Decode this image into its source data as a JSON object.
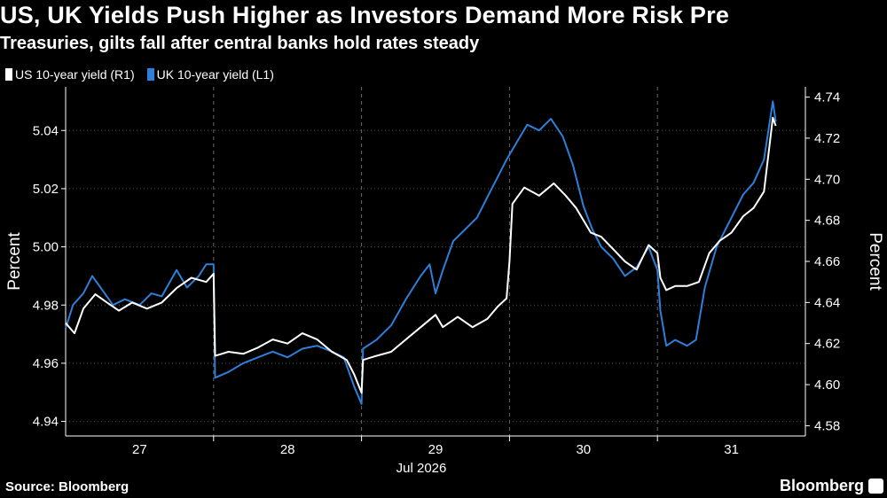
{
  "header": {
    "title": "US, UK Yields Push Higher as Investors Demand More Risk Pre",
    "subtitle": "Treasuries, gilts fall after central banks hold rates steady"
  },
  "footer": {
    "source": "Source: Bloomberg",
    "brand": "Bloomberg"
  },
  "colors": {
    "us": "#ffffff",
    "uk": "#2e7fd9",
    "background": "#000000",
    "grid": "#4d4d4d"
  },
  "chart_data": {
    "type": "line",
    "x_tick_labels": [
      "27",
      "28",
      "29",
      "30",
      "31"
    ],
    "x_sub_label": "Jul 2026",
    "x_range": [
      26.5,
      31.5
    ],
    "left_axis": {
      "label": "Percent",
      "range": [
        4.935,
        5.055
      ],
      "ticks": [
        "4.94",
        "4.96",
        "4.98",
        "5.00",
        "5.02",
        "5.04"
      ]
    },
    "right_axis": {
      "label": "Percent",
      "range": [
        4.575,
        4.745
      ],
      "ticks": [
        "4.58",
        "4.60",
        "4.62",
        "4.64",
        "4.66",
        "4.68",
        "4.70",
        "4.72",
        "4.74"
      ]
    },
    "grid": "horizontal dotted, vertical dashed at day boundaries",
    "legend": "top-left",
    "series": [
      {
        "name": "US 10-year yield (R1)",
        "axis": "right",
        "points": [
          [
            26.5,
            4.63
          ],
          [
            26.56,
            4.625
          ],
          [
            26.62,
            4.637
          ],
          [
            26.7,
            4.644
          ],
          [
            26.78,
            4.64
          ],
          [
            26.86,
            4.636
          ],
          [
            26.95,
            4.64
          ],
          [
            27.05,
            4.637
          ],
          [
            27.15,
            4.64
          ],
          [
            27.25,
            4.647
          ],
          [
            27.35,
            4.652
          ],
          [
            27.45,
            4.65
          ],
          [
            27.5,
            4.654
          ],
          [
            27.51,
            4.614
          ],
          [
            27.6,
            4.616
          ],
          [
            27.7,
            4.615
          ],
          [
            27.8,
            4.618
          ],
          [
            27.9,
            4.622
          ],
          [
            28.0,
            4.62
          ],
          [
            28.1,
            4.625
          ],
          [
            28.2,
            4.622
          ],
          [
            28.3,
            4.616
          ],
          [
            28.4,
            4.612
          ],
          [
            28.45,
            4.605
          ],
          [
            28.5,
            4.596
          ],
          [
            28.51,
            4.612
          ],
          [
            28.6,
            4.614
          ],
          [
            28.7,
            4.616
          ],
          [
            28.8,
            4.622
          ],
          [
            28.9,
            4.628
          ],
          [
            29.0,
            4.634
          ],
          [
            29.05,
            4.628
          ],
          [
            29.15,
            4.633
          ],
          [
            29.25,
            4.628
          ],
          [
            29.35,
            4.632
          ],
          [
            29.42,
            4.638
          ],
          [
            29.48,
            4.642
          ],
          [
            29.5,
            4.66
          ],
          [
            29.52,
            4.688
          ],
          [
            29.6,
            4.696
          ],
          [
            29.7,
            4.692
          ],
          [
            29.8,
            4.698
          ],
          [
            29.88,
            4.692
          ],
          [
            29.95,
            4.686
          ],
          [
            30.0,
            4.68
          ],
          [
            30.05,
            4.674
          ],
          [
            30.12,
            4.672
          ],
          [
            30.2,
            4.666
          ],
          [
            30.28,
            4.66
          ],
          [
            30.36,
            4.656
          ],
          [
            30.44,
            4.668
          ],
          [
            30.5,
            4.664
          ],
          [
            30.52,
            4.652
          ],
          [
            30.56,
            4.646
          ],
          [
            30.62,
            4.648
          ],
          [
            30.7,
            4.648
          ],
          [
            30.78,
            4.65
          ],
          [
            30.85,
            4.664
          ],
          [
            30.92,
            4.67
          ],
          [
            31.0,
            4.674
          ],
          [
            31.08,
            4.682
          ],
          [
            31.15,
            4.686
          ],
          [
            31.22,
            4.694
          ],
          [
            31.28,
            4.73
          ],
          [
            31.3,
            4.726
          ]
        ]
      },
      {
        "name": "UK 10-year yield (L1)",
        "axis": "left",
        "points": [
          [
            26.5,
            4.972
          ],
          [
            26.55,
            4.98
          ],
          [
            26.62,
            4.984
          ],
          [
            26.68,
            4.99
          ],
          [
            26.75,
            4.985
          ],
          [
            26.82,
            4.98
          ],
          [
            26.9,
            4.982
          ],
          [
            27.0,
            4.98
          ],
          [
            27.08,
            4.984
          ],
          [
            27.15,
            4.983
          ],
          [
            27.25,
            4.992
          ],
          [
            27.32,
            4.986
          ],
          [
            27.4,
            4.99
          ],
          [
            27.45,
            4.994
          ],
          [
            27.5,
            4.994
          ],
          [
            27.51,
            4.955
          ],
          [
            27.6,
            4.957
          ],
          [
            27.7,
            4.96
          ],
          [
            27.8,
            4.962
          ],
          [
            27.9,
            4.964
          ],
          [
            28.0,
            4.962
          ],
          [
            28.1,
            4.965
          ],
          [
            28.2,
            4.966
          ],
          [
            28.3,
            4.964
          ],
          [
            28.38,
            4.962
          ],
          [
            28.45,
            4.952
          ],
          [
            28.5,
            4.946
          ],
          [
            28.51,
            4.965
          ],
          [
            28.6,
            4.968
          ],
          [
            28.7,
            4.973
          ],
          [
            28.8,
            4.982
          ],
          [
            28.9,
            4.99
          ],
          [
            28.96,
            4.994
          ],
          [
            29.0,
            4.984
          ],
          [
            29.05,
            4.992
          ],
          [
            29.12,
            5.002
          ],
          [
            29.2,
            5.006
          ],
          [
            29.28,
            5.01
          ],
          [
            29.36,
            5.018
          ],
          [
            29.42,
            5.024
          ],
          [
            29.48,
            5.03
          ],
          [
            29.55,
            5.036
          ],
          [
            29.62,
            5.042
          ],
          [
            29.7,
            5.04
          ],
          [
            29.78,
            5.044
          ],
          [
            29.86,
            5.038
          ],
          [
            29.93,
            5.028
          ],
          [
            30.0,
            5.014
          ],
          [
            30.06,
            5.006
          ],
          [
            30.12,
            5.0
          ],
          [
            30.2,
            4.996
          ],
          [
            30.28,
            4.99
          ],
          [
            30.36,
            4.993
          ],
          [
            30.44,
            5.0
          ],
          [
            30.5,
            4.992
          ],
          [
            30.52,
            4.978
          ],
          [
            30.56,
            4.966
          ],
          [
            30.62,
            4.968
          ],
          [
            30.7,
            4.966
          ],
          [
            30.76,
            4.968
          ],
          [
            30.82,
            4.986
          ],
          [
            30.9,
            5.0
          ],
          [
            31.0,
            5.01
          ],
          [
            31.08,
            5.018
          ],
          [
            31.15,
            5.022
          ],
          [
            31.22,
            5.03
          ],
          [
            31.28,
            5.05
          ],
          [
            31.3,
            5.043
          ]
        ]
      }
    ]
  }
}
